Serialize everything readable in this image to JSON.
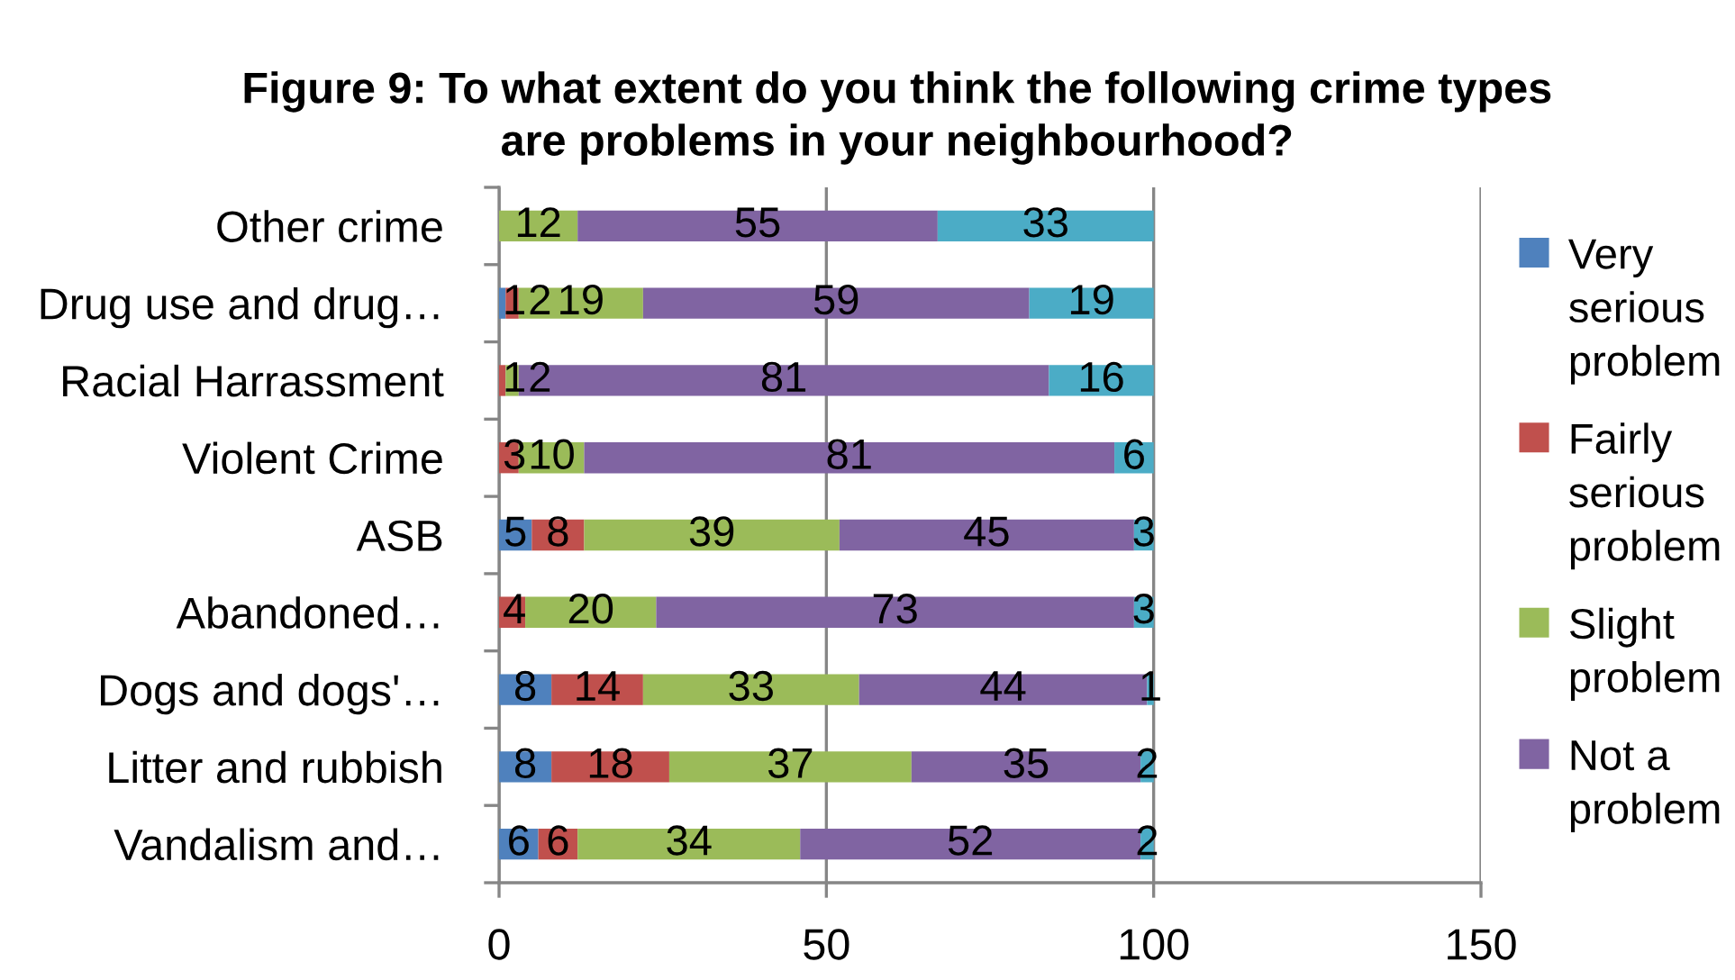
{
  "chart_data": {
    "type": "bar",
    "orientation": "horizontal",
    "stacked": true,
    "title": "Figure 9: To what extent do you think the following crime types\nare problems in your neighbourhood?",
    "categories": [
      "Other crime",
      "Drug use and drug…",
      "Racial Harrassment",
      "Violent Crime",
      "ASB",
      "Abandoned…",
      "Dogs and dogs'…",
      "Litter and rubbish",
      "Vandalism and…"
    ],
    "series": [
      {
        "name": "Very serious problem",
        "color": "#4f81bd",
        "values": [
          null,
          1,
          null,
          null,
          5,
          null,
          8,
          8,
          6
        ]
      },
      {
        "name": "Fairly serious problem",
        "color": "#c0504d",
        "values": [
          null,
          2,
          1,
          3,
          8,
          4,
          14,
          18,
          6
        ]
      },
      {
        "name": "Slight problem",
        "color": "#9bbb59",
        "values": [
          12,
          19,
          2,
          10,
          39,
          20,
          33,
          37,
          34
        ]
      },
      {
        "name": "Not a problem",
        "color": "#8064a2",
        "values": [
          55,
          59,
          81,
          81,
          45,
          73,
          44,
          35,
          52
        ]
      },
      {
        "color": "#4bacc6",
        "values": [
          33,
          19,
          16,
          6,
          3,
          3,
          1,
          2,
          2
        ]
      }
    ],
    "xlim": [
      0,
      150
    ],
    "xticks": [
      0,
      50,
      100,
      150
    ],
    "grid": "x",
    "legend": "right",
    "data_labels": true
  }
}
